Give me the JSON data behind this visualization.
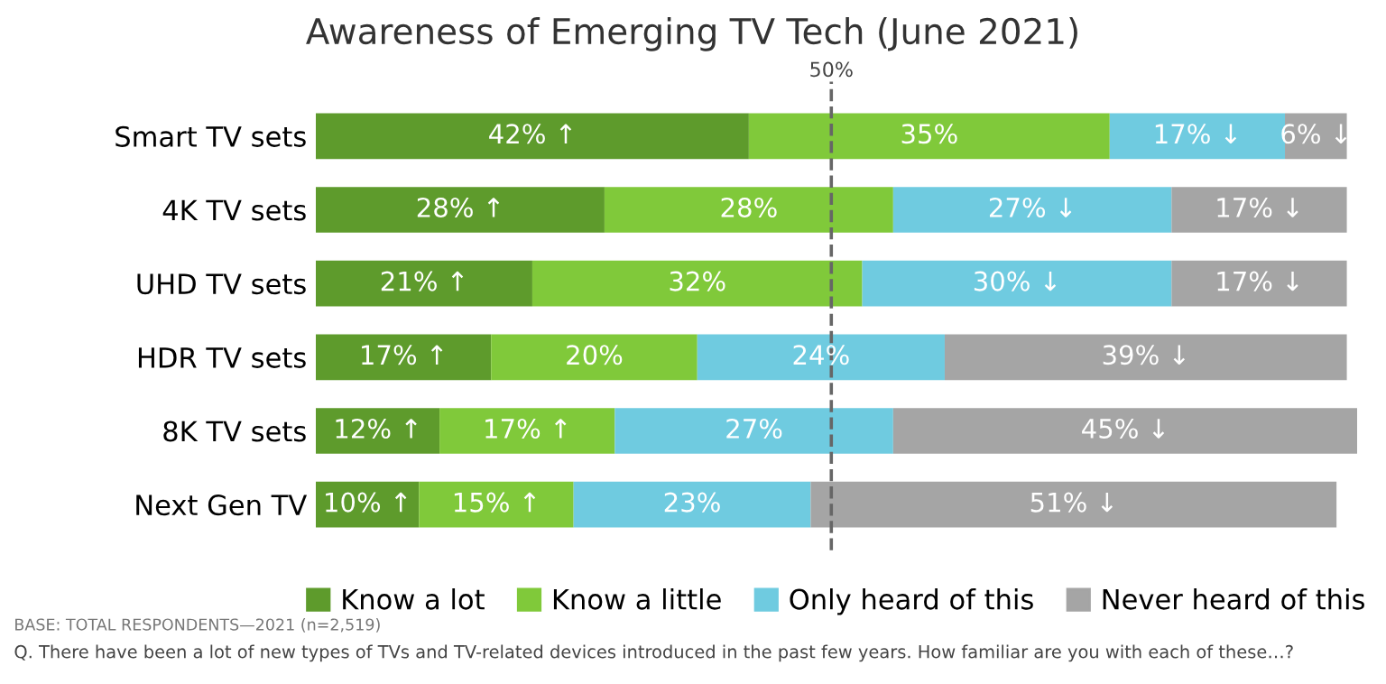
{
  "chart_data": {
    "type": "bar",
    "orientation": "horizontal",
    "stacked": true,
    "title": "Awareness of Emerging TV Tech (June 2021)",
    "categories": [
      "Smart TV sets",
      "4K TV sets",
      "UHD TV sets",
      "HDR TV sets",
      "8K TV sets",
      "Next Gen TV"
    ],
    "xlim": [
      0,
      101
    ],
    "tick_labels": "y",
    "legend": "bottom",
    "grid": false,
    "series": [
      {
        "name": "Know a lot",
        "color": "#5e9b2c",
        "values": [
          42,
          28,
          21,
          17,
          12,
          10
        ],
        "value_labels": [
          "42% ↑",
          "28% ↑",
          "21% ↑",
          "17% ↑",
          "12% ↑",
          "10% ↑"
        ]
      },
      {
        "name": "Know a little",
        "color": "#80c93a",
        "values": [
          35,
          28,
          32,
          20,
          17,
          15
        ],
        "value_labels": [
          "35%",
          "28%",
          "32%",
          "20%",
          "17% ↑",
          "15% ↑"
        ]
      },
      {
        "name": "Only heard of this",
        "color": "#6fcbe0",
        "values": [
          17,
          27,
          30,
          24,
          27,
          23
        ],
        "value_labels": [
          "17% ↓",
          "27% ↓",
          "30% ↓",
          "24%",
          "27%",
          "23%"
        ]
      },
      {
        "name": "Never heard of this",
        "color": "#a5a5a5",
        "values": [
          6,
          17,
          17,
          39,
          45,
          51
        ],
        "value_labels": [
          "6% ↓",
          "17% ↓",
          "17% ↓",
          "39% ↓",
          "45% ↓",
          "51% ↓"
        ]
      }
    ],
    "ref_lines": [
      {
        "axis": "x",
        "value": 50,
        "label": "50%",
        "color": "#666666",
        "line_style": "dashed"
      }
    ],
    "annotations": [
      "BASE: TOTAL RESPONDENTS—2021 (n=2,519)",
      "Q. There have been a lot of new types of TVs and TV-related devices introduced in the past few years. How familiar are you with each of these…?"
    ]
  }
}
